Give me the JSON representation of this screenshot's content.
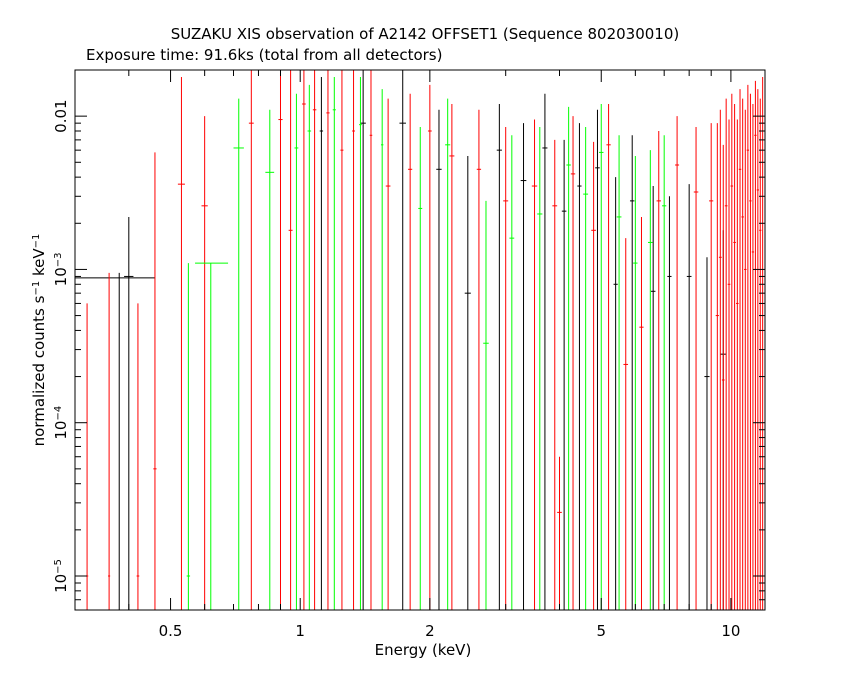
{
  "chart_data": {
    "type": "scatter",
    "title": "SUZAKU XIS observation of A2142 OFFSET1 (Sequence 802030010)",
    "subtitle": "Exposure time: 91.6ks (total from all detectors)",
    "xlabel": "Energy (keV)",
    "ylabel_main": "normalized counts s",
    "ylabel_exp1": "−1",
    "ylabel_mid": " keV",
    "ylabel_exp2": "−1",
    "x_scale": "log",
    "y_scale": "log",
    "xlim": [
      0.3,
      12.0
    ],
    "ylim": [
      6e-06,
      0.02
    ],
    "grid": false,
    "x_ticks": [
      {
        "value": 0.5,
        "label": "0.5"
      },
      {
        "value": 1,
        "label": "1"
      },
      {
        "value": 2,
        "label": "2"
      },
      {
        "value": 5,
        "label": "5"
      },
      {
        "value": 10,
        "label": "10"
      }
    ],
    "y_ticks": [
      {
        "value": 0.01,
        "base": "0.01",
        "exp": ""
      },
      {
        "value": 0.001,
        "base": "10",
        "exp": "−3"
      },
      {
        "value": 0.0001,
        "base": "10",
        "exp": "−4"
      },
      {
        "value": 1e-05,
        "base": "10",
        "exp": "−5"
      }
    ],
    "series": [
      {
        "color": "#000000",
        "points": [
          {
            "x": 0.38,
            "xerr": [
              0.3,
              0.46
            ],
            "y": 0.00088,
            "ylo": 6e-06,
            "yhi": 0.00095
          },
          {
            "x": 0.4,
            "xerr": [
              0.39,
              0.41
            ],
            "y": 0.0009,
            "ylo": 6e-06,
            "yhi": 0.0022
          },
          {
            "x": 1.12,
            "xerr": [
              1.11,
              1.13
            ],
            "y": 0.008,
            "ylo": 6e-06,
            "yhi": 0.018
          },
          {
            "x": 1.4,
            "xerr": [
              1.38,
              1.42
            ],
            "y": 0.009,
            "ylo": 6e-06,
            "yhi": 0.02
          },
          {
            "x": 1.73,
            "xerr": [
              1.7,
              1.76
            ],
            "y": 0.009,
            "ylo": 6e-06,
            "yhi": 0.02
          },
          {
            "x": 2.1,
            "xerr": [
              2.07,
              2.13
            ],
            "y": 0.0045,
            "ylo": 6e-06,
            "yhi": 0.011
          },
          {
            "x": 2.45,
            "xerr": [
              2.41,
              2.49
            ],
            "y": 0.0007,
            "ylo": 6e-06,
            "yhi": 0.0055
          },
          {
            "x": 2.9,
            "xerr": [
              2.86,
              2.94
            ],
            "y": 0.006,
            "ylo": 6e-06,
            "yhi": 0.012
          },
          {
            "x": 3.3,
            "xerr": [
              3.25,
              3.35
            ],
            "y": 0.0038,
            "ylo": 6e-06,
            "yhi": 0.009
          },
          {
            "x": 3.7,
            "xerr": [
              3.65,
              3.75
            ],
            "y": 0.0062,
            "ylo": 6e-06,
            "yhi": 0.014
          },
          {
            "x": 4.1,
            "xerr": [
              4.05,
              4.15
            ],
            "y": 0.0024,
            "ylo": 6e-06,
            "yhi": 0.007
          },
          {
            "x": 4.45,
            "xerr": [
              4.4,
              4.5
            ],
            "y": 0.0035,
            "ylo": 6e-06,
            "yhi": 0.009
          },
          {
            "x": 4.9,
            "xerr": [
              4.84,
              4.96
            ],
            "y": 0.0046,
            "ylo": 6e-06,
            "yhi": 0.011
          },
          {
            "x": 5.4,
            "xerr": [
              5.34,
              5.46
            ],
            "y": 0.0008,
            "ylo": 6e-06,
            "yhi": 0.004
          },
          {
            "x": 5.9,
            "xerr": [
              5.83,
              5.97
            ],
            "y": 0.0028,
            "ylo": 6e-06,
            "yhi": 0.0075
          },
          {
            "x": 6.6,
            "xerr": [
              6.52,
              6.68
            ],
            "y": 0.00072,
            "ylo": 6e-06,
            "yhi": 0.0035
          },
          {
            "x": 7.2,
            "xerr": [
              7.12,
              7.28
            ],
            "y": 0.0009,
            "ylo": 6e-06,
            "yhi": 0.003
          },
          {
            "x": 8.0,
            "xerr": [
              7.9,
              8.1
            ],
            "y": 0.0009,
            "ylo": 6e-06,
            "yhi": 0.0036
          },
          {
            "x": 8.8,
            "xerr": [
              8.68,
              8.92
            ],
            "y": 0.0002,
            "ylo": 6e-06,
            "yhi": 0.0012
          },
          {
            "x": 9.6,
            "xerr": [
              9.45,
              9.75
            ],
            "y": 0.00028,
            "ylo": 6e-06,
            "yhi": 0.0018
          }
        ]
      },
      {
        "color": "#ff0000",
        "points": [
          {
            "x": 0.32,
            "xerr": [
              0.318,
              0.322
            ],
            "y": 1e-05,
            "ylo": 6e-06,
            "yhi": 0.0006
          },
          {
            "x": 0.36,
            "xerr": [
              0.358,
              0.362
            ],
            "y": 1e-05,
            "ylo": 6e-06,
            "yhi": 0.00095
          },
          {
            "x": 0.42,
            "xerr": [
              0.417,
              0.423
            ],
            "y": 1e-05,
            "ylo": 6e-06,
            "yhi": 0.0006
          },
          {
            "x": 0.46,
            "xerr": [
              0.456,
              0.464
            ],
            "y": 5e-05,
            "ylo": 6e-06,
            "yhi": 0.0058
          },
          {
            "x": 0.53,
            "xerr": [
              0.52,
              0.54
            ],
            "y": 0.0036,
            "ylo": 6e-06,
            "yhi": 0.018
          },
          {
            "x": 0.6,
            "xerr": [
              0.59,
              0.61
            ],
            "y": 0.0026,
            "ylo": 6e-06,
            "yhi": 0.01
          },
          {
            "x": 0.77,
            "xerr": [
              0.76,
              0.78
            ],
            "y": 0.009,
            "ylo": 6e-06,
            "yhi": 0.02
          },
          {
            "x": 0.9,
            "xerr": [
              0.89,
              0.91
            ],
            "y": 0.0095,
            "ylo": 6e-06,
            "yhi": 0.02
          },
          {
            "x": 0.95,
            "xerr": [
              0.94,
              0.96
            ],
            "y": 0.0018,
            "ylo": 6e-06,
            "yhi": 0.02
          },
          {
            "x": 1.02,
            "xerr": [
              1.01,
              1.03
            ],
            "y": 0.012,
            "ylo": 6e-06,
            "yhi": 0.02
          },
          {
            "x": 1.08,
            "xerr": [
              1.07,
              1.09
            ],
            "y": 0.011,
            "ylo": 6e-06,
            "yhi": 0.02
          },
          {
            "x": 1.16,
            "xerr": [
              1.15,
              1.17
            ],
            "y": 0.0105,
            "ylo": 6e-06,
            "yhi": 0.02
          },
          {
            "x": 1.25,
            "xerr": [
              1.24,
              1.26
            ],
            "y": 0.006,
            "ylo": 6e-06,
            "yhi": 0.02
          },
          {
            "x": 1.33,
            "xerr": [
              1.32,
              1.34
            ],
            "y": 0.008,
            "ylo": 6e-06,
            "yhi": 0.02
          },
          {
            "x": 1.46,
            "xerr": [
              1.45,
              1.47
            ],
            "y": 0.0075,
            "ylo": 6e-06,
            "yhi": 0.02
          },
          {
            "x": 1.6,
            "xerr": [
              1.58,
              1.62
            ],
            "y": 0.0035,
            "ylo": 6e-06,
            "yhi": 0.013
          },
          {
            "x": 1.8,
            "xerr": [
              1.78,
              1.82
            ],
            "y": 0.0045,
            "ylo": 6e-06,
            "yhi": 0.014
          },
          {
            "x": 2.0,
            "xerr": [
              1.98,
              2.02
            ],
            "y": 0.008,
            "ylo": 6e-06,
            "yhi": 0.016
          },
          {
            "x": 2.25,
            "xerr": [
              2.22,
              2.28
            ],
            "y": 0.0055,
            "ylo": 6e-06,
            "yhi": 0.012
          },
          {
            "x": 2.6,
            "xerr": [
              2.57,
              2.63
            ],
            "y": 0.0045,
            "ylo": 6e-06,
            "yhi": 0.011
          },
          {
            "x": 3.0,
            "xerr": [
              2.96,
              3.04
            ],
            "y": 0.0028,
            "ylo": 6e-06,
            "yhi": 0.0085
          },
          {
            "x": 3.5,
            "xerr": [
              3.45,
              3.55
            ],
            "y": 0.0035,
            "ylo": 6e-06,
            "yhi": 0.0095
          },
          {
            "x": 3.9,
            "xerr": [
              3.85,
              3.95
            ],
            "y": 0.0026,
            "ylo": 6e-06,
            "yhi": 0.007
          },
          {
            "x": 4.0,
            "xerr": [
              3.95,
              4.05
            ],
            "y": 2.6e-05,
            "ylo": 6e-06,
            "yhi": 6e-05
          },
          {
            "x": 4.3,
            "xerr": [
              4.25,
              4.35
            ],
            "y": 0.0042,
            "ylo": 6e-06,
            "yhi": 0.01
          },
          {
            "x": 4.8,
            "xerr": [
              4.74,
              4.86
            ],
            "y": 0.0018,
            "ylo": 6e-06,
            "yhi": 0.0068
          },
          {
            "x": 5.2,
            "xerr": [
              5.14,
              5.26
            ],
            "y": 0.0065,
            "ylo": 6e-06,
            "yhi": 0.012
          },
          {
            "x": 5.7,
            "xerr": [
              5.63,
              5.77
            ],
            "y": 0.00024,
            "ylo": 6e-06,
            "yhi": 0.0016
          },
          {
            "x": 6.2,
            "xerr": [
              6.13,
              6.27
            ],
            "y": 0.00042,
            "ylo": 6e-06,
            "yhi": 0.0022
          },
          {
            "x": 6.8,
            "xerr": [
              6.72,
              6.88
            ],
            "y": 0.0028,
            "ylo": 6e-06,
            "yhi": 0.008
          },
          {
            "x": 7.5,
            "xerr": [
              7.42,
              7.58
            ],
            "y": 0.0048,
            "ylo": 6e-06,
            "yhi": 0.01
          },
          {
            "x": 8.3,
            "xerr": [
              8.2,
              8.4
            ],
            "y": 0.0032,
            "ylo": 6e-06,
            "yhi": 0.0085
          },
          {
            "x": 9.0,
            "xerr": [
              8.9,
              9.1
            ],
            "y": 0.0028,
            "ylo": 6e-06,
            "yhi": 0.009
          }
        ]
      },
      {
        "color": "#00ff00",
        "points": [
          {
            "x": 0.55,
            "xerr": [
              0.545,
              0.555
            ],
            "y": 1e-05,
            "ylo": 6e-06,
            "yhi": 0.0011
          },
          {
            "x": 0.62,
            "xerr": [
              0.57,
              0.68
            ],
            "y": 0.0011,
            "ylo": 6e-06,
            "yhi": 0.0011
          },
          {
            "x": 0.72,
            "xerr": [
              0.7,
              0.74
            ],
            "y": 0.0062,
            "ylo": 6e-06,
            "yhi": 0.013
          },
          {
            "x": 0.85,
            "xerr": [
              0.83,
              0.87
            ],
            "y": 0.0043,
            "ylo": 6e-06,
            "yhi": 0.011
          },
          {
            "x": 0.98,
            "xerr": [
              0.97,
              0.99
            ],
            "y": 0.0062,
            "ylo": 6e-06,
            "yhi": 0.014
          },
          {
            "x": 1.05,
            "xerr": [
              1.04,
              1.06
            ],
            "y": 0.008,
            "ylo": 6e-06,
            "yhi": 0.016
          },
          {
            "x": 1.2,
            "xerr": [
              1.19,
              1.21
            ],
            "y": 0.011,
            "ylo": 6e-06,
            "yhi": 0.018
          },
          {
            "x": 1.38,
            "xerr": [
              1.37,
              1.39
            ],
            "y": 0.0088,
            "ylo": 6e-06,
            "yhi": 0.018
          },
          {
            "x": 1.55,
            "xerr": [
              1.54,
              1.56
            ],
            "y": 0.0065,
            "ylo": 6e-06,
            "yhi": 0.015
          },
          {
            "x": 1.9,
            "xerr": [
              1.88,
              1.92
            ],
            "y": 0.0025,
            "ylo": 6e-06,
            "yhi": 0.0085
          },
          {
            "x": 2.2,
            "xerr": [
              2.17,
              2.23
            ],
            "y": 0.0065,
            "ylo": 6e-06,
            "yhi": 0.013
          },
          {
            "x": 2.7,
            "xerr": [
              2.66,
              2.74
            ],
            "y": 0.00033,
            "ylo": 6e-06,
            "yhi": 0.0028
          },
          {
            "x": 3.1,
            "xerr": [
              3.06,
              3.14
            ],
            "y": 0.0016,
            "ylo": 6e-06,
            "yhi": 0.0075
          },
          {
            "x": 3.6,
            "xerr": [
              3.55,
              3.65
            ],
            "y": 0.0023,
            "ylo": 6e-06,
            "yhi": 0.0085
          },
          {
            "x": 4.2,
            "xerr": [
              4.15,
              4.25
            ],
            "y": 0.0048,
            "ylo": 6e-06,
            "yhi": 0.0115
          },
          {
            "x": 4.6,
            "xerr": [
              4.54,
              4.66
            ],
            "y": 0.0031,
            "ylo": 6e-06,
            "yhi": 0.0085
          },
          {
            "x": 5.0,
            "xerr": [
              4.94,
              5.06
            ],
            "y": 0.0058,
            "ylo": 6e-06,
            "yhi": 0.012
          },
          {
            "x": 5.5,
            "xerr": [
              5.43,
              5.57
            ],
            "y": 0.0022,
            "ylo": 6e-06,
            "yhi": 0.0075
          },
          {
            "x": 6.0,
            "xerr": [
              5.93,
              6.07
            ],
            "y": 0.0011,
            "ylo": 6e-06,
            "yhi": 0.0055
          },
          {
            "x": 6.5,
            "xerr": [
              6.42,
              6.58
            ],
            "y": 0.0015,
            "ylo": 6e-06,
            "yhi": 0.006
          },
          {
            "x": 7.0,
            "xerr": [
              6.92,
              7.08
            ],
            "y": 0.0026,
            "ylo": 6e-06,
            "yhi": 0.0075
          }
        ]
      },
      {
        "color": "#ff0000",
        "points": [
          {
            "x": 9.3,
            "xerr": [
              9.22,
              9.38
            ],
            "y": 0.0005,
            "ylo": 6e-06,
            "yhi": 0.009
          },
          {
            "x": 9.45,
            "xerr": [
              9.38,
              9.52
            ],
            "y": 0.0012,
            "ylo": 6e-06,
            "yhi": 0.011
          },
          {
            "x": 9.6,
            "xerr": [
              9.53,
              9.67
            ],
            "y": 0.00019,
            "ylo": 6e-06,
            "yhi": 0.0065
          },
          {
            "x": 9.75,
            "xerr": [
              9.68,
              9.82
            ],
            "y": 0.0026,
            "ylo": 6e-06,
            "yhi": 0.013
          },
          {
            "x": 9.9,
            "xerr": [
              9.83,
              9.97
            ],
            "y": 0.0008,
            "ylo": 6e-06,
            "yhi": 0.0095
          },
          {
            "x": 10.05,
            "xerr": [
              9.98,
              10.12
            ],
            "y": 0.0035,
            "ylo": 6e-06,
            "yhi": 0.014
          },
          {
            "x": 10.2,
            "xerr": [
              10.13,
              10.27
            ],
            "y": 0.0015,
            "ylo": 6e-06,
            "yhi": 0.012
          },
          {
            "x": 10.35,
            "xerr": [
              10.28,
              10.42
            ],
            "y": 0.0006,
            "ylo": 6e-06,
            "yhi": 0.0095
          },
          {
            "x": 10.5,
            "xerr": [
              10.43,
              10.57
            ],
            "y": 0.0045,
            "ylo": 6e-06,
            "yhi": 0.015
          },
          {
            "x": 10.65,
            "xerr": [
              10.58,
              10.72
            ],
            "y": 0.0022,
            "ylo": 6e-06,
            "yhi": 0.013
          },
          {
            "x": 10.8,
            "xerr": [
              10.73,
              10.87
            ],
            "y": 0.001,
            "ylo": 6e-06,
            "yhi": 0.011
          },
          {
            "x": 10.95,
            "xerr": [
              10.88,
              11.02
            ],
            "y": 0.006,
            "ylo": 6e-06,
            "yhi": 0.016
          },
          {
            "x": 11.1,
            "xerr": [
              11.03,
              11.17
            ],
            "y": 0.0028,
            "ylo": 6e-06,
            "yhi": 0.014
          },
          {
            "x": 11.25,
            "xerr": [
              11.18,
              11.32
            ],
            "y": 0.0013,
            "ylo": 6e-06,
            "yhi": 0.012
          },
          {
            "x": 11.4,
            "xerr": [
              11.33,
              11.47
            ],
            "y": 0.0075,
            "ylo": 6e-06,
            "yhi": 0.017
          },
          {
            "x": 11.55,
            "xerr": [
              11.48,
              11.62
            ],
            "y": 0.0033,
            "ylo": 6e-06,
            "yhi": 0.015
          },
          {
            "x": 11.7,
            "xerr": [
              11.63,
              11.77
            ],
            "y": 0.0018,
            "ylo": 6e-06,
            "yhi": 0.013
          },
          {
            "x": 11.85,
            "xerr": [
              11.78,
              11.92
            ],
            "y": 0.009,
            "ylo": 6e-06,
            "yhi": 0.018
          }
        ]
      }
    ]
  }
}
